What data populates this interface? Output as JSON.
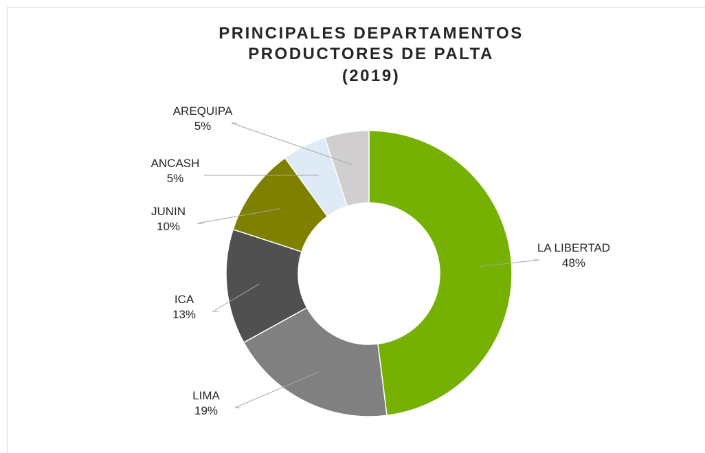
{
  "chart_data": {
    "type": "donut",
    "title": "PRINCIPALES DEPARTAMENTOS PRODUCTORES DE PALTA",
    "subtitle": "(2019)",
    "categories": [
      "LA LIBERTAD",
      "LIMA",
      "ICA",
      "JUNIN",
      "ANCASH",
      "AREQUIPA"
    ],
    "values": [
      48,
      19,
      13,
      10,
      5,
      5
    ],
    "value_labels": [
      "48%",
      "19%",
      "13%",
      "10%",
      "5%",
      "5%"
    ],
    "colors": [
      "#76b000",
      "#808080",
      "#505050",
      "#7f7f00",
      "#deebf7",
      "#d0cece"
    ]
  }
}
